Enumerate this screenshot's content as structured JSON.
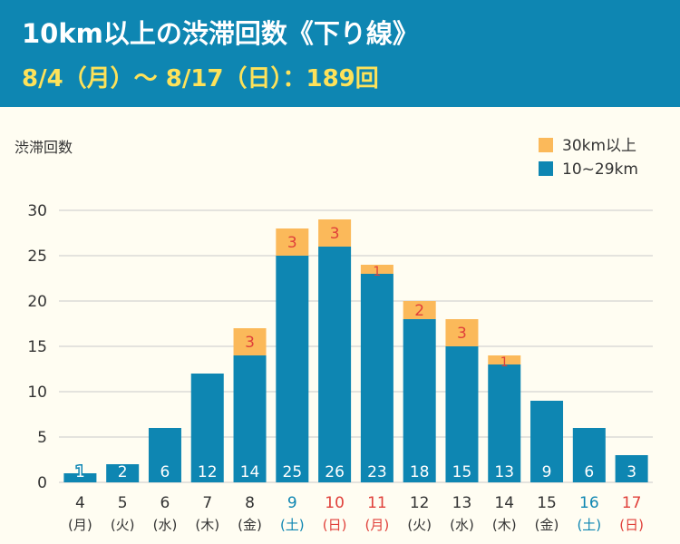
{
  "header": {
    "title": "10km以上の渋滞回数《下り線》",
    "subtitle": "8/4（月）～ 8/17（日）：189回"
  },
  "colors": {
    "header_bg": "#0e86b2",
    "bar_main": "#0e86b2",
    "bar_top": "#fbb95a",
    "weekday": "#333333",
    "saturday": "#0e86b2",
    "sunday_holiday": "#e0403a"
  },
  "chart_data": {
    "type": "bar",
    "stacked": true,
    "ylabel": "渋滞回数",
    "ylim": [
      0,
      30
    ],
    "yticks": [
      0,
      5,
      10,
      15,
      20,
      25,
      30
    ],
    "grid": true,
    "legend_position": "top-right",
    "categories": [
      {
        "day": "4",
        "dow": "(月)",
        "kind": "weekday"
      },
      {
        "day": "5",
        "dow": "(火)",
        "kind": "weekday"
      },
      {
        "day": "6",
        "dow": "(水)",
        "kind": "weekday"
      },
      {
        "day": "7",
        "dow": "(木)",
        "kind": "weekday"
      },
      {
        "day": "8",
        "dow": "(金)",
        "kind": "weekday"
      },
      {
        "day": "9",
        "dow": "(土)",
        "kind": "saturday"
      },
      {
        "day": "10",
        "dow": "(日)",
        "kind": "sunday"
      },
      {
        "day": "11",
        "dow": "(月)",
        "kind": "sunday"
      },
      {
        "day": "12",
        "dow": "(火)",
        "kind": "weekday"
      },
      {
        "day": "13",
        "dow": "(水)",
        "kind": "weekday"
      },
      {
        "day": "14",
        "dow": "(木)",
        "kind": "weekday"
      },
      {
        "day": "15",
        "dow": "(金)",
        "kind": "weekday"
      },
      {
        "day": "16",
        "dow": "(土)",
        "kind": "saturday"
      },
      {
        "day": "17",
        "dow": "(日)",
        "kind": "sunday"
      }
    ],
    "series": [
      {
        "name": "10~29km",
        "color": "#0e86b2",
        "values": [
          1,
          2,
          6,
          12,
          14,
          25,
          26,
          23,
          18,
          15,
          13,
          9,
          6,
          3
        ]
      },
      {
        "name": "30km以上",
        "color": "#fbb95a",
        "values": [
          0,
          0,
          0,
          0,
          3,
          3,
          3,
          1,
          2,
          3,
          1,
          0,
          0,
          0
        ]
      }
    ]
  }
}
